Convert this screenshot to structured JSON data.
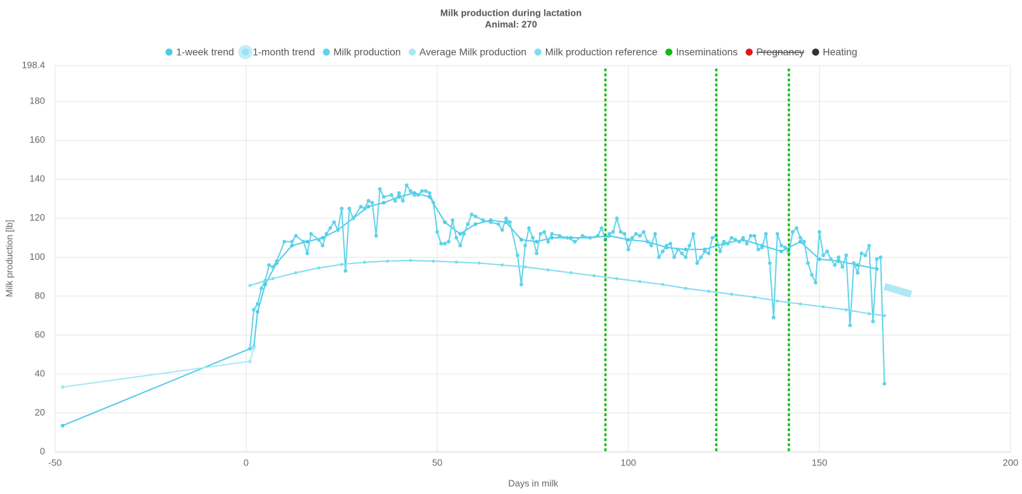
{
  "chart_data": {
    "type": "line",
    "title": "Milk production during lactation",
    "subtitle": "Animal: 270",
    "x_label": "Days in milk",
    "y_label": "Milk production [lb]",
    "xlim": [
      -50,
      200
    ],
    "xticks": [
      -50,
      0,
      50,
      100,
      150,
      200
    ],
    "ylim": [
      0,
      198.4
    ],
    "yticks": [
      0,
      20,
      40,
      60,
      80,
      100,
      120,
      140,
      160,
      180,
      198.4
    ],
    "grid": true,
    "legend": "top",
    "series": [
      {
        "name": "1-week trend",
        "color": "#4fcbe6",
        "x": [
          -48,
          1,
          2,
          3,
          5,
          8,
          12,
          16,
          20,
          24,
          28,
          32,
          36,
          40,
          44,
          48,
          52,
          56,
          60,
          64,
          68,
          72,
          76,
          80,
          85,
          90,
          95,
          100,
          105,
          110,
          115,
          120,
          125,
          130,
          135,
          140,
          145,
          150,
          155,
          160,
          165
        ],
        "values": [
          13.5,
          53,
          54,
          72,
          86,
          97,
          106,
          108,
          110,
          114,
          120,
          126,
          128,
          131,
          133,
          131,
          118,
          112,
          117,
          119,
          118,
          109,
          108,
          110,
          110,
          110,
          111,
          109,
          108,
          105,
          104,
          104,
          107,
          109,
          106,
          103,
          108,
          99,
          98,
          96,
          94
        ]
      },
      {
        "name": "1-month trend",
        "color": "#9be3f2",
        "x": [
          167,
          174
        ],
        "values": [
          85,
          81
        ]
      },
      {
        "name": "Milk production",
        "color": "#5dd3ea",
        "x": [
          1,
          2,
          3,
          4,
          5,
          6,
          7,
          8,
          10,
          12,
          13,
          15,
          16,
          17,
          19,
          20,
          21,
          22,
          23,
          24,
          25,
          26,
          27,
          28,
          30,
          31,
          32,
          33,
          34,
          35,
          36,
          38,
          39,
          40,
          41,
          42,
          43,
          44,
          45,
          46,
          47,
          48,
          49,
          50,
          51,
          52,
          53,
          54,
          55,
          56,
          57,
          58,
          59,
          60,
          62,
          64,
          66,
          67,
          68,
          69,
          71,
          72,
          73,
          74,
          75,
          76,
          77,
          78,
          79,
          80,
          82,
          84,
          86,
          88,
          90,
          92,
          93,
          94,
          95,
          96,
          97,
          98,
          99,
          100,
          101,
          102,
          103,
          104,
          105,
          106,
          107,
          108,
          109,
          110,
          111,
          112,
          113,
          114,
          115,
          116,
          117,
          118,
          119,
          120,
          121,
          122,
          123,
          124,
          125,
          126,
          127,
          128,
          129,
          130,
          131,
          132,
          133,
          134,
          135,
          136,
          137,
          138,
          139,
          140,
          141,
          142,
          143,
          144,
          145,
          146,
          147,
          148,
          149,
          150,
          151,
          152,
          153,
          154,
          155,
          156,
          157,
          158,
          159,
          160,
          161,
          162,
          163,
          164,
          165,
          166,
          167
        ],
        "values": [
          53,
          73,
          76,
          84,
          88,
          96,
          95,
          98,
          108,
          108,
          111,
          108,
          102,
          112,
          109,
          106,
          112,
          115,
          118,
          114,
          125,
          93,
          125,
          120,
          126,
          125,
          129,
          128,
          111,
          135,
          131,
          132,
          129,
          133,
          129,
          137,
          134,
          132,
          132,
          134,
          134,
          133,
          128,
          113,
          107,
          107,
          108,
          119,
          110,
          106,
          112,
          117,
          122,
          121,
          119,
          118,
          117,
          114,
          120,
          118,
          101,
          86,
          106,
          115,
          110,
          102,
          112,
          113,
          108,
          112,
          111,
          110,
          108,
          111,
          110,
          111,
          115,
          109,
          112,
          113,
          120,
          113,
          112,
          104,
          110,
          112,
          111,
          113,
          108,
          106,
          112,
          100,
          103,
          106,
          107,
          100,
          104,
          102,
          100,
          106,
          112,
          97,
          100,
          103,
          102,
          110,
          111,
          103,
          108,
          107,
          110,
          109,
          108,
          110,
          107,
          111,
          111,
          104,
          105,
          112,
          97,
          69,
          112,
          106,
          105,
          102,
          113,
          115,
          110,
          108,
          97,
          91,
          87,
          113,
          101,
          103,
          99,
          96,
          100,
          95,
          101,
          65,
          97,
          92,
          102,
          101,
          106,
          67,
          99,
          100,
          35
        ]
      },
      {
        "name": "Average Milk production",
        "color": "#a6e8f4",
        "x": [
          -48,
          1,
          2
        ],
        "values": [
          33.3,
          46.5,
          53.5
        ]
      },
      {
        "name": "Milk production reference",
        "color": "#7fdcef",
        "x": [
          1,
          7,
          13,
          19,
          25,
          31,
          37,
          43,
          49,
          55,
          61,
          67,
          73,
          79,
          85,
          91,
          97,
          103,
          109,
          115,
          121,
          127,
          133,
          139,
          145,
          151,
          157,
          163,
          167
        ],
        "values": [
          85.5,
          89,
          92,
          94.5,
          96.3,
          97.4,
          98,
          98.3,
          98,
          97.5,
          97,
          96,
          95,
          93.5,
          92,
          90.5,
          89,
          87.5,
          86,
          84,
          82.5,
          81,
          79.5,
          77.5,
          76,
          74.5,
          73,
          71,
          70
        ]
      }
    ],
    "events": [
      {
        "name": "Inseminations",
        "color": "#11bb11",
        "x": [
          94,
          123,
          142
        ]
      },
      {
        "name": "Pregnancy",
        "color": "#ee1111",
        "hidden": true,
        "x": []
      },
      {
        "name": "Heating",
        "color": "#333333",
        "x": []
      }
    ]
  }
}
